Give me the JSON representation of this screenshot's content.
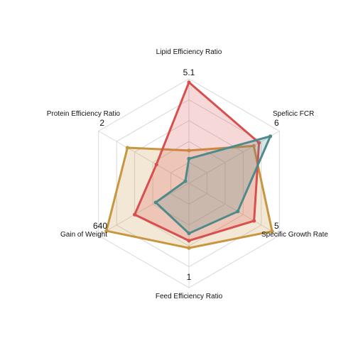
{
  "chart_data": {
    "type": "radar",
    "title": "",
    "grid_levels": 5,
    "axes": [
      {
        "label": "Lipid Efficiency Ratio",
        "max": 5.1,
        "max_label": "5.1"
      },
      {
        "label": "Speficic FCR",
        "max": 6,
        "max_label": "6"
      },
      {
        "label": "Specific Growth Rate",
        "max": 5,
        "max_label": "5"
      },
      {
        "label": "Feed Efficiency Ratio",
        "max": 1,
        "max_label": "1"
      },
      {
        "label": "Gain of Weight",
        "max": 640,
        "max_label": "640"
      },
      {
        "label": "Protein Efficiency Ratio",
        "max": 2,
        "max_label": "2"
      }
    ],
    "series": [
      {
        "color": "#c8963e",
        "values": [
          1.6,
          4.3,
          4.6,
          0.62,
          584,
          1.36
        ]
      },
      {
        "color": "#d94f4f",
        "values": [
          4.93,
          4.65,
          3.6,
          0.55,
          384,
          0.72
        ]
      },
      {
        "color": "#4f8a8b",
        "values": [
          1.2,
          5.4,
          2.7,
          0.48,
          235,
          0.08
        ]
      }
    ]
  }
}
